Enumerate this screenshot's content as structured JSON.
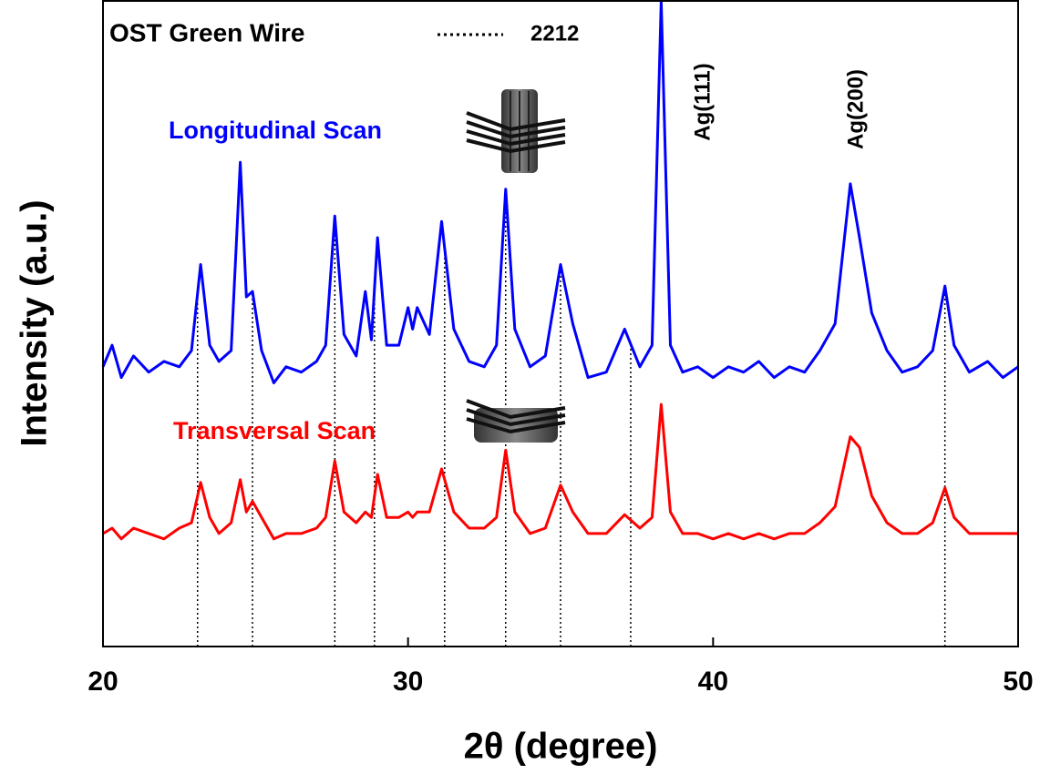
{
  "chart_data": {
    "type": "line",
    "title": "OST Green Wire",
    "x_label": "2θ (degree)",
    "y_label": "Intensity (a.u.)",
    "xlim": [
      20,
      50
    ],
    "xticks": [
      20,
      30,
      40,
      50
    ],
    "ylim": [
      0,
      12
    ],
    "x": [
      20.0,
      20.3,
      20.6,
      21.0,
      21.5,
      22.0,
      22.5,
      22.9,
      23.2,
      23.5,
      23.8,
      24.2,
      24.5,
      24.7,
      24.9,
      25.2,
      25.6,
      26.0,
      26.5,
      27.0,
      27.3,
      27.6,
      27.9,
      28.3,
      28.6,
      28.8,
      29.0,
      29.3,
      29.7,
      30.0,
      30.15,
      30.3,
      30.7,
      31.1,
      31.5,
      32.0,
      32.5,
      32.9,
      33.2,
      33.5,
      34.0,
      34.5,
      35.0,
      35.4,
      35.9,
      36.5,
      37.1,
      37.6,
      38.0,
      38.3,
      38.6,
      39.0,
      39.5,
      40.0,
      40.5,
      41.0,
      41.5,
      42.0,
      42.5,
      43.0,
      43.5,
      44.0,
      44.5,
      44.8,
      45.2,
      45.7,
      46.2,
      46.7,
      47.2,
      47.6,
      47.9,
      48.4,
      49.0,
      49.5,
      50.0
    ],
    "series": [
      {
        "name": "Longitudinal Scan",
        "color": "#0000ff",
        "values": [
          5.2,
          5.6,
          5.0,
          5.4,
          5.1,
          5.3,
          5.2,
          5.5,
          7.1,
          5.6,
          5.3,
          5.5,
          9.0,
          6.5,
          6.6,
          5.5,
          4.9,
          5.2,
          5.1,
          5.3,
          5.6,
          8.0,
          5.8,
          5.4,
          6.6,
          5.7,
          7.6,
          5.6,
          5.6,
          6.3,
          5.9,
          6.3,
          5.8,
          7.9,
          5.9,
          5.3,
          5.2,
          5.6,
          8.5,
          5.9,
          5.2,
          5.4,
          7.1,
          6.0,
          5.0,
          5.1,
          5.9,
          5.2,
          5.6,
          12.0,
          5.6,
          5.1,
          5.2,
          5.0,
          5.2,
          5.1,
          5.3,
          5.0,
          5.2,
          5.1,
          5.5,
          6.0,
          8.6,
          7.6,
          6.2,
          5.5,
          5.1,
          5.2,
          5.5,
          6.7,
          5.6,
          5.1,
          5.3,
          5.0,
          5.2
        ]
      },
      {
        "name": "Transversal Scan",
        "color": "#ff0000",
        "values": [
          2.1,
          2.2,
          2.0,
          2.2,
          2.1,
          2.0,
          2.2,
          2.3,
          3.05,
          2.4,
          2.1,
          2.3,
          3.1,
          2.5,
          2.7,
          2.4,
          2.0,
          2.1,
          2.1,
          2.2,
          2.4,
          3.45,
          2.5,
          2.3,
          2.5,
          2.4,
          3.2,
          2.4,
          2.4,
          2.5,
          2.4,
          2.5,
          2.5,
          3.3,
          2.5,
          2.2,
          2.2,
          2.4,
          3.65,
          2.5,
          2.1,
          2.2,
          3.0,
          2.5,
          2.1,
          2.1,
          2.45,
          2.2,
          2.4,
          4.5,
          2.5,
          2.1,
          2.1,
          2.0,
          2.1,
          2.0,
          2.1,
          2.0,
          2.1,
          2.1,
          2.3,
          2.6,
          3.9,
          3.7,
          2.8,
          2.3,
          2.1,
          2.1,
          2.3,
          2.95,
          2.4,
          2.1,
          2.1,
          2.1,
          2.1
        ]
      }
    ],
    "reference_lines": {
      "name": "2212",
      "x": [
        23.1,
        24.9,
        27.6,
        28.9,
        31.2,
        33.2,
        35.0,
        37.3,
        47.6
      ]
    },
    "annotations": [
      "Ag(111)",
      "Ag(200)"
    ]
  }
}
